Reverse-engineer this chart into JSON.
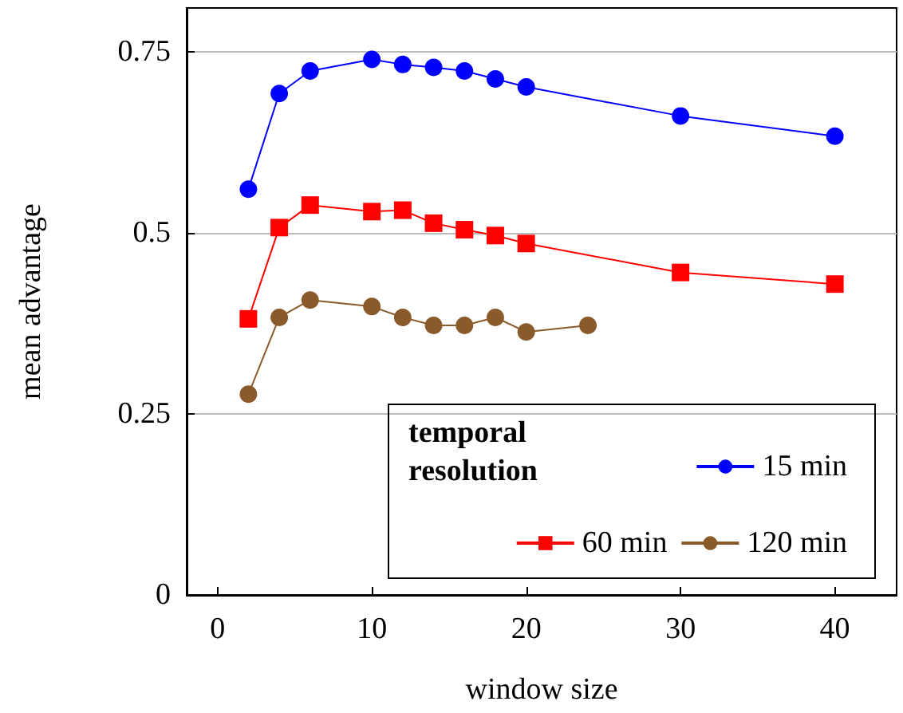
{
  "chart_data": {
    "type": "line",
    "xlabel": "window size",
    "ylabel": "mean advantage",
    "legend_title": "temporal resolution",
    "xlim": [
      -2,
      44
    ],
    "xticks": [
      0,
      10,
      20,
      30,
      40
    ],
    "ylim": [
      0,
      0.81
    ],
    "yticks": [
      0,
      0.25,
      0.5,
      0.75
    ],
    "grid": "y",
    "legend": "bottom right",
    "series": [
      {
        "name": "15 min",
        "color": "#0000ff",
        "marker": "circle",
        "x": [
          2,
          4,
          6,
          10,
          12,
          14,
          16,
          18,
          20,
          30,
          40
        ],
        "values": [
          0.56,
          0.692,
          0.723,
          0.739,
          0.732,
          0.728,
          0.723,
          0.712,
          0.701,
          0.661,
          0.633
        ]
      },
      {
        "name": "60 min",
        "color": "#ff0000",
        "marker": "square",
        "x": [
          2,
          4,
          6,
          10,
          12,
          14,
          16,
          18,
          20,
          30,
          40
        ],
        "values": [
          0.381,
          0.507,
          0.538,
          0.529,
          0.531,
          0.513,
          0.504,
          0.496,
          0.485,
          0.445,
          0.429
        ]
      },
      {
        "name": "120 min",
        "color": "#8b5a2b",
        "marker": "circle",
        "x": [
          2,
          4,
          6,
          10,
          12,
          14,
          16,
          18,
          20,
          24
        ],
        "values": [
          0.277,
          0.383,
          0.407,
          0.398,
          0.383,
          0.372,
          0.372,
          0.383,
          0.363,
          0.372
        ]
      }
    ]
  }
}
